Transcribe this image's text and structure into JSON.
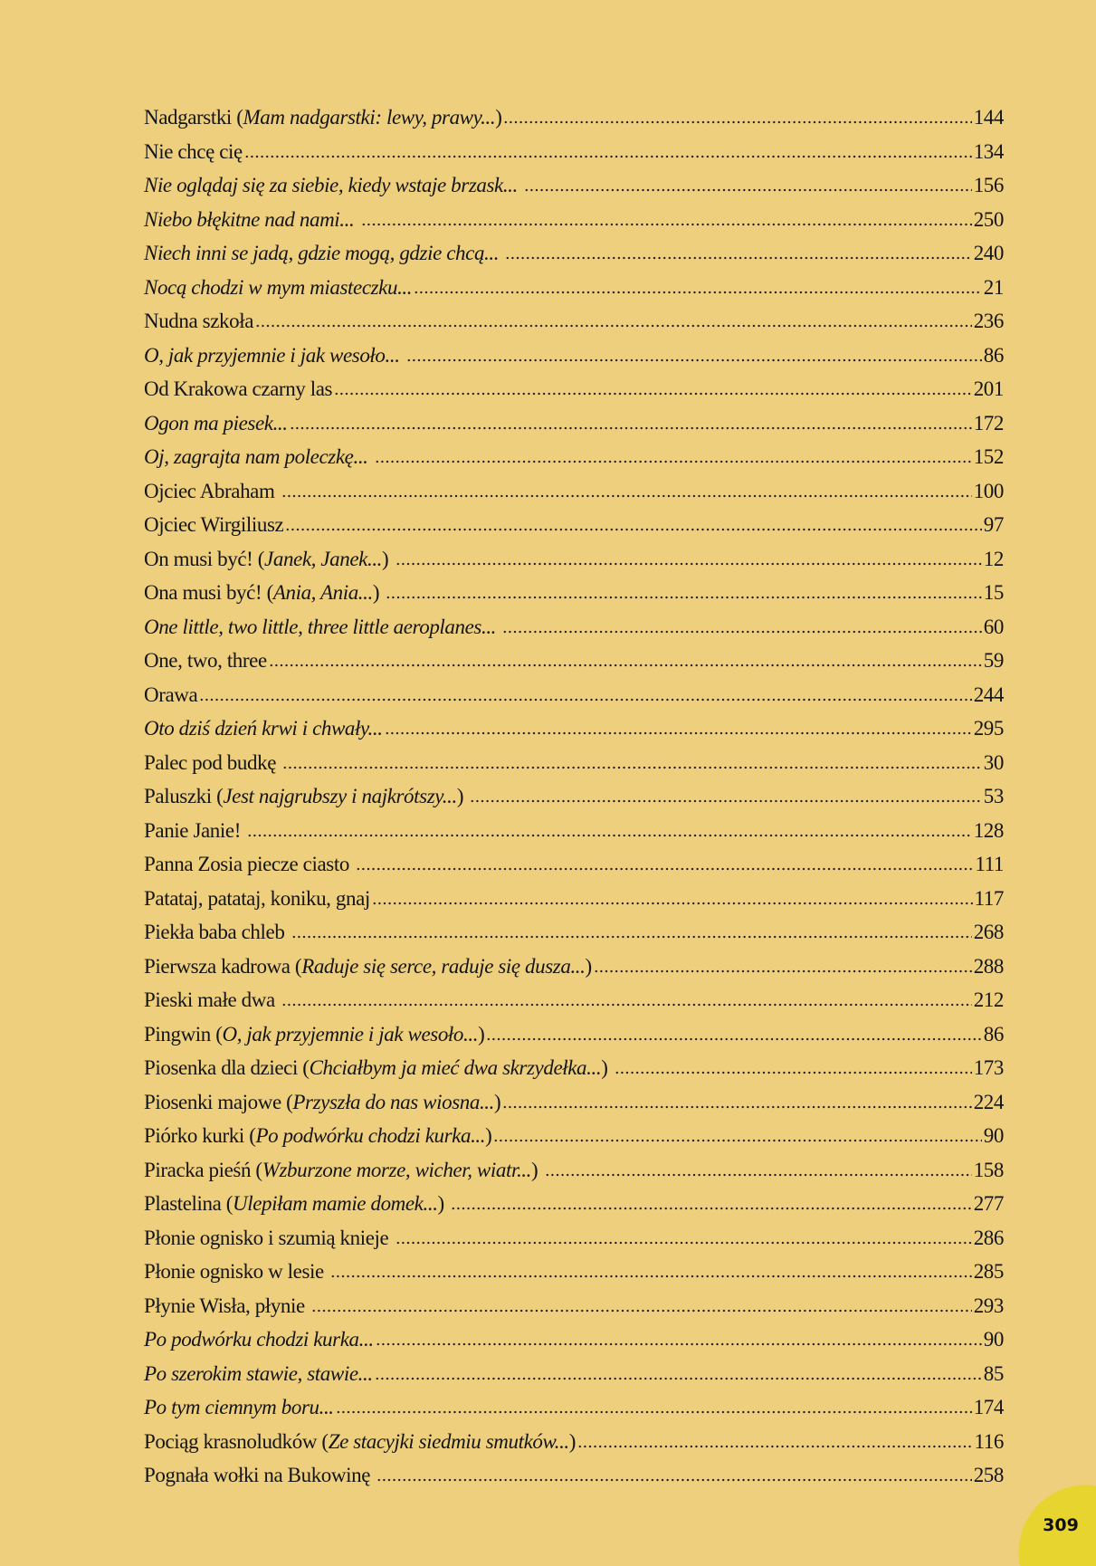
{
  "entries": [
    {
      "pre": "Nadgarstki (",
      "it": "Mam nadgarstki: lewy, prawy...",
      "post": ")",
      "page": "144"
    },
    {
      "pre": "Nie chcę cię",
      "it": "",
      "post": "",
      "page": "134"
    },
    {
      "pre": "",
      "it": "Nie oglądaj się za siebie, kiedy wstaje brzask...",
      "post": " ",
      "page": "156"
    },
    {
      "pre": "",
      "it": "Niebo błękitne nad nami...",
      "post": " ",
      "page": "250"
    },
    {
      "pre": "",
      "it": "Niech inni se jadą, gdzie mogą, gdzie chcą...",
      "post": " ",
      "page": "240"
    },
    {
      "pre": "",
      "it": "Nocą chodzi w mym miasteczku...",
      "post": "",
      "page": "21"
    },
    {
      "pre": "Nudna szkoła",
      "it": "",
      "post": "",
      "page": "236"
    },
    {
      "pre": "",
      "it": "O, jak przyjemnie i jak wesoło...",
      "post": " ",
      "page": "86"
    },
    {
      "pre": "Od Krakowa czarny las",
      "it": "",
      "post": "",
      "page": "201"
    },
    {
      "pre": "",
      "it": "Ogon ma piesek...",
      "post": "",
      "page": "172"
    },
    {
      "pre": "",
      "it": "Oj, zagrajta nam poleczkę...",
      "post": " ",
      "page": "152"
    },
    {
      "pre": "Ojciec Abraham ",
      "it": "",
      "post": "",
      "page": "100"
    },
    {
      "pre": "Ojciec Wirgiliusz",
      "it": "",
      "post": "",
      "page": "97"
    },
    {
      "pre": "On musi być! (",
      "it": "Janek, Janek...",
      "post": ") ",
      "page": "12"
    },
    {
      "pre": "Ona musi być! (",
      "it": "Ania, Ania...",
      "post": ") ",
      "page": "15"
    },
    {
      "pre": "",
      "it": "One little, two little, three little aeroplanes...",
      "post": " ",
      "page": "60"
    },
    {
      "pre": "One, two, three",
      "it": "",
      "post": "",
      "page": "59"
    },
    {
      "pre": "Orawa",
      "it": "",
      "post": "",
      "page": "244"
    },
    {
      "pre": "",
      "it": "Oto dziś dzień krwi i chwały...",
      "post": "",
      "page": "295"
    },
    {
      "pre": "Palec pod budkę ",
      "it": "",
      "post": "",
      "page": "30"
    },
    {
      "pre": "Paluszki (",
      "it": "Jest najgrubszy i najkrótszy...",
      "post": ") ",
      "page": "53"
    },
    {
      "pre": "Panie Janie! ",
      "it": "",
      "post": "",
      "page": "128"
    },
    {
      "pre": "Panna Zosia piecze ciasto ",
      "it": "",
      "post": "",
      "page": "111"
    },
    {
      "pre": "Patataj, patataj, koniku, gnaj",
      "it": "",
      "post": "",
      "page": "117"
    },
    {
      "pre": "Piekła baba chleb ",
      "it": "",
      "post": "",
      "page": "268"
    },
    {
      "pre": "Pierwsza kadrowa (",
      "it": "Raduje się serce, raduje się dusza...",
      "post": ")",
      "page": "288"
    },
    {
      "pre": "Pieski małe dwa ",
      "it": "",
      "post": "",
      "page": "212"
    },
    {
      "pre": "Pingwin (",
      "it": "O, jak przyjemnie i jak wesoło...",
      "post": ")",
      "page": "86"
    },
    {
      "pre": "Piosenka dla dzieci (",
      "it": "Chciałbym ja mieć dwa skrzydełka...",
      "post": ") ",
      "page": "173"
    },
    {
      "pre": "Piosenki majowe (",
      "it": "Przyszła do nas wiosna...",
      "post": ")",
      "page": "224"
    },
    {
      "pre": "Piórko kurki (",
      "it": "Po podwórku chodzi kurka...",
      "post": ")",
      "page": "90"
    },
    {
      "pre": "Piracka pieśń (",
      "it": "Wzburzone morze, wicher, wiatr...",
      "post": ") ",
      "page": "158"
    },
    {
      "pre": "Plastelina (",
      "it": "Ulepiłam mamie domek...",
      "post": ") ",
      "page": "277"
    },
    {
      "pre": "Płonie ognisko i szumią knieje ",
      "it": "",
      "post": "",
      "page": "286"
    },
    {
      "pre": "Płonie ognisko w lesie ",
      "it": "",
      "post": "",
      "page": "285"
    },
    {
      "pre": "Płynie Wisła, płynie ",
      "it": "",
      "post": "",
      "page": "293"
    },
    {
      "pre": "",
      "it": "Po podwórku chodzi kurka...",
      "post": "",
      "page": "90"
    },
    {
      "pre": "",
      "it": "Po szerokim stawie, stawie...",
      "post": "",
      "page": "85"
    },
    {
      "pre": "",
      "it": "Po tym ciemnym boru...",
      "post": "",
      "page": "174"
    },
    {
      "pre": "Pociąg krasnoludków (",
      "it": "Ze stacyjki siedmiu smutków...",
      "post": ")",
      "page": "116"
    },
    {
      "pre": "Pognała wołki na Bukowinę ",
      "it": "",
      "post": "",
      "page": "258"
    }
  ],
  "page_number": "309",
  "colors": {
    "background": "#EECF7E",
    "page_circle": "#E8D42E",
    "text": "#141414"
  }
}
